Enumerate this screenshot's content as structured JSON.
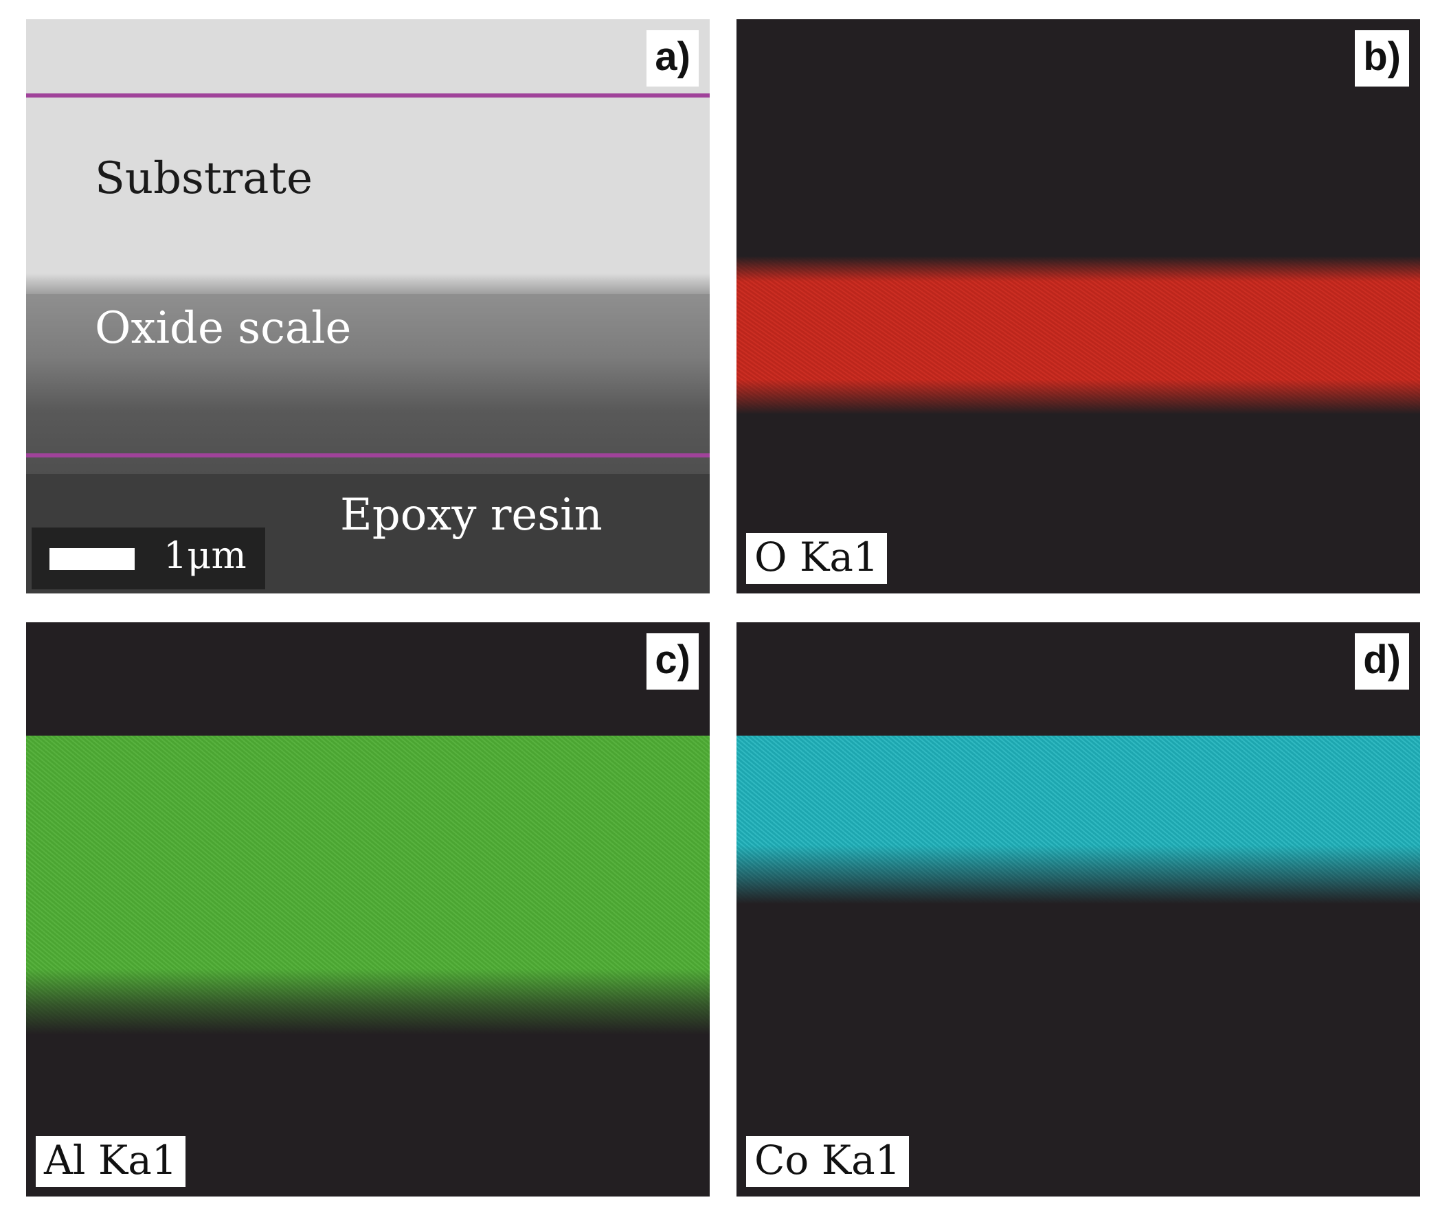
{
  "panels": {
    "a": {
      "letter": "a)",
      "labels": {
        "substrate": "Substrate",
        "oxide": "Oxide scale",
        "epoxy": "Epoxy resin"
      },
      "scalebar": "1μm"
    },
    "b": {
      "letter": "b)",
      "element": "O Ka1",
      "color": "#c8281e"
    },
    "c": {
      "letter": "c)",
      "element": "Al Ka1",
      "color": "#4fae35"
    },
    "d": {
      "letter": "d)",
      "element": "Co Ka1",
      "color": "#1fb3bc"
    }
  },
  "colors": {
    "background": "#231f22",
    "boundary_line": "#a0439a"
  }
}
